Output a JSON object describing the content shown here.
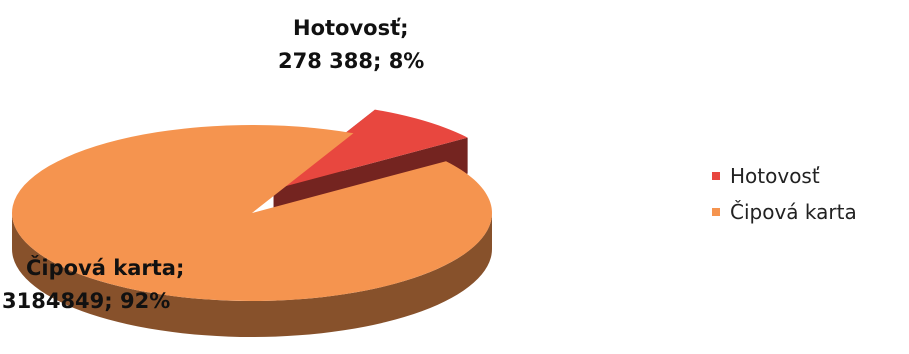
{
  "chart_data": {
    "type": "pie",
    "title": "",
    "slices": [
      {
        "label": "Hotovosť",
        "value_text": "278 388",
        "value": 278388,
        "percent": 8,
        "color": "#e8473f",
        "exploded": true
      },
      {
        "label": "Čipová karta",
        "value_text": "3184849",
        "value": 3184849,
        "percent": 92,
        "color": "#f5944f",
        "exploded": false
      }
    ],
    "legend_position": "right",
    "style": "3d"
  }
}
